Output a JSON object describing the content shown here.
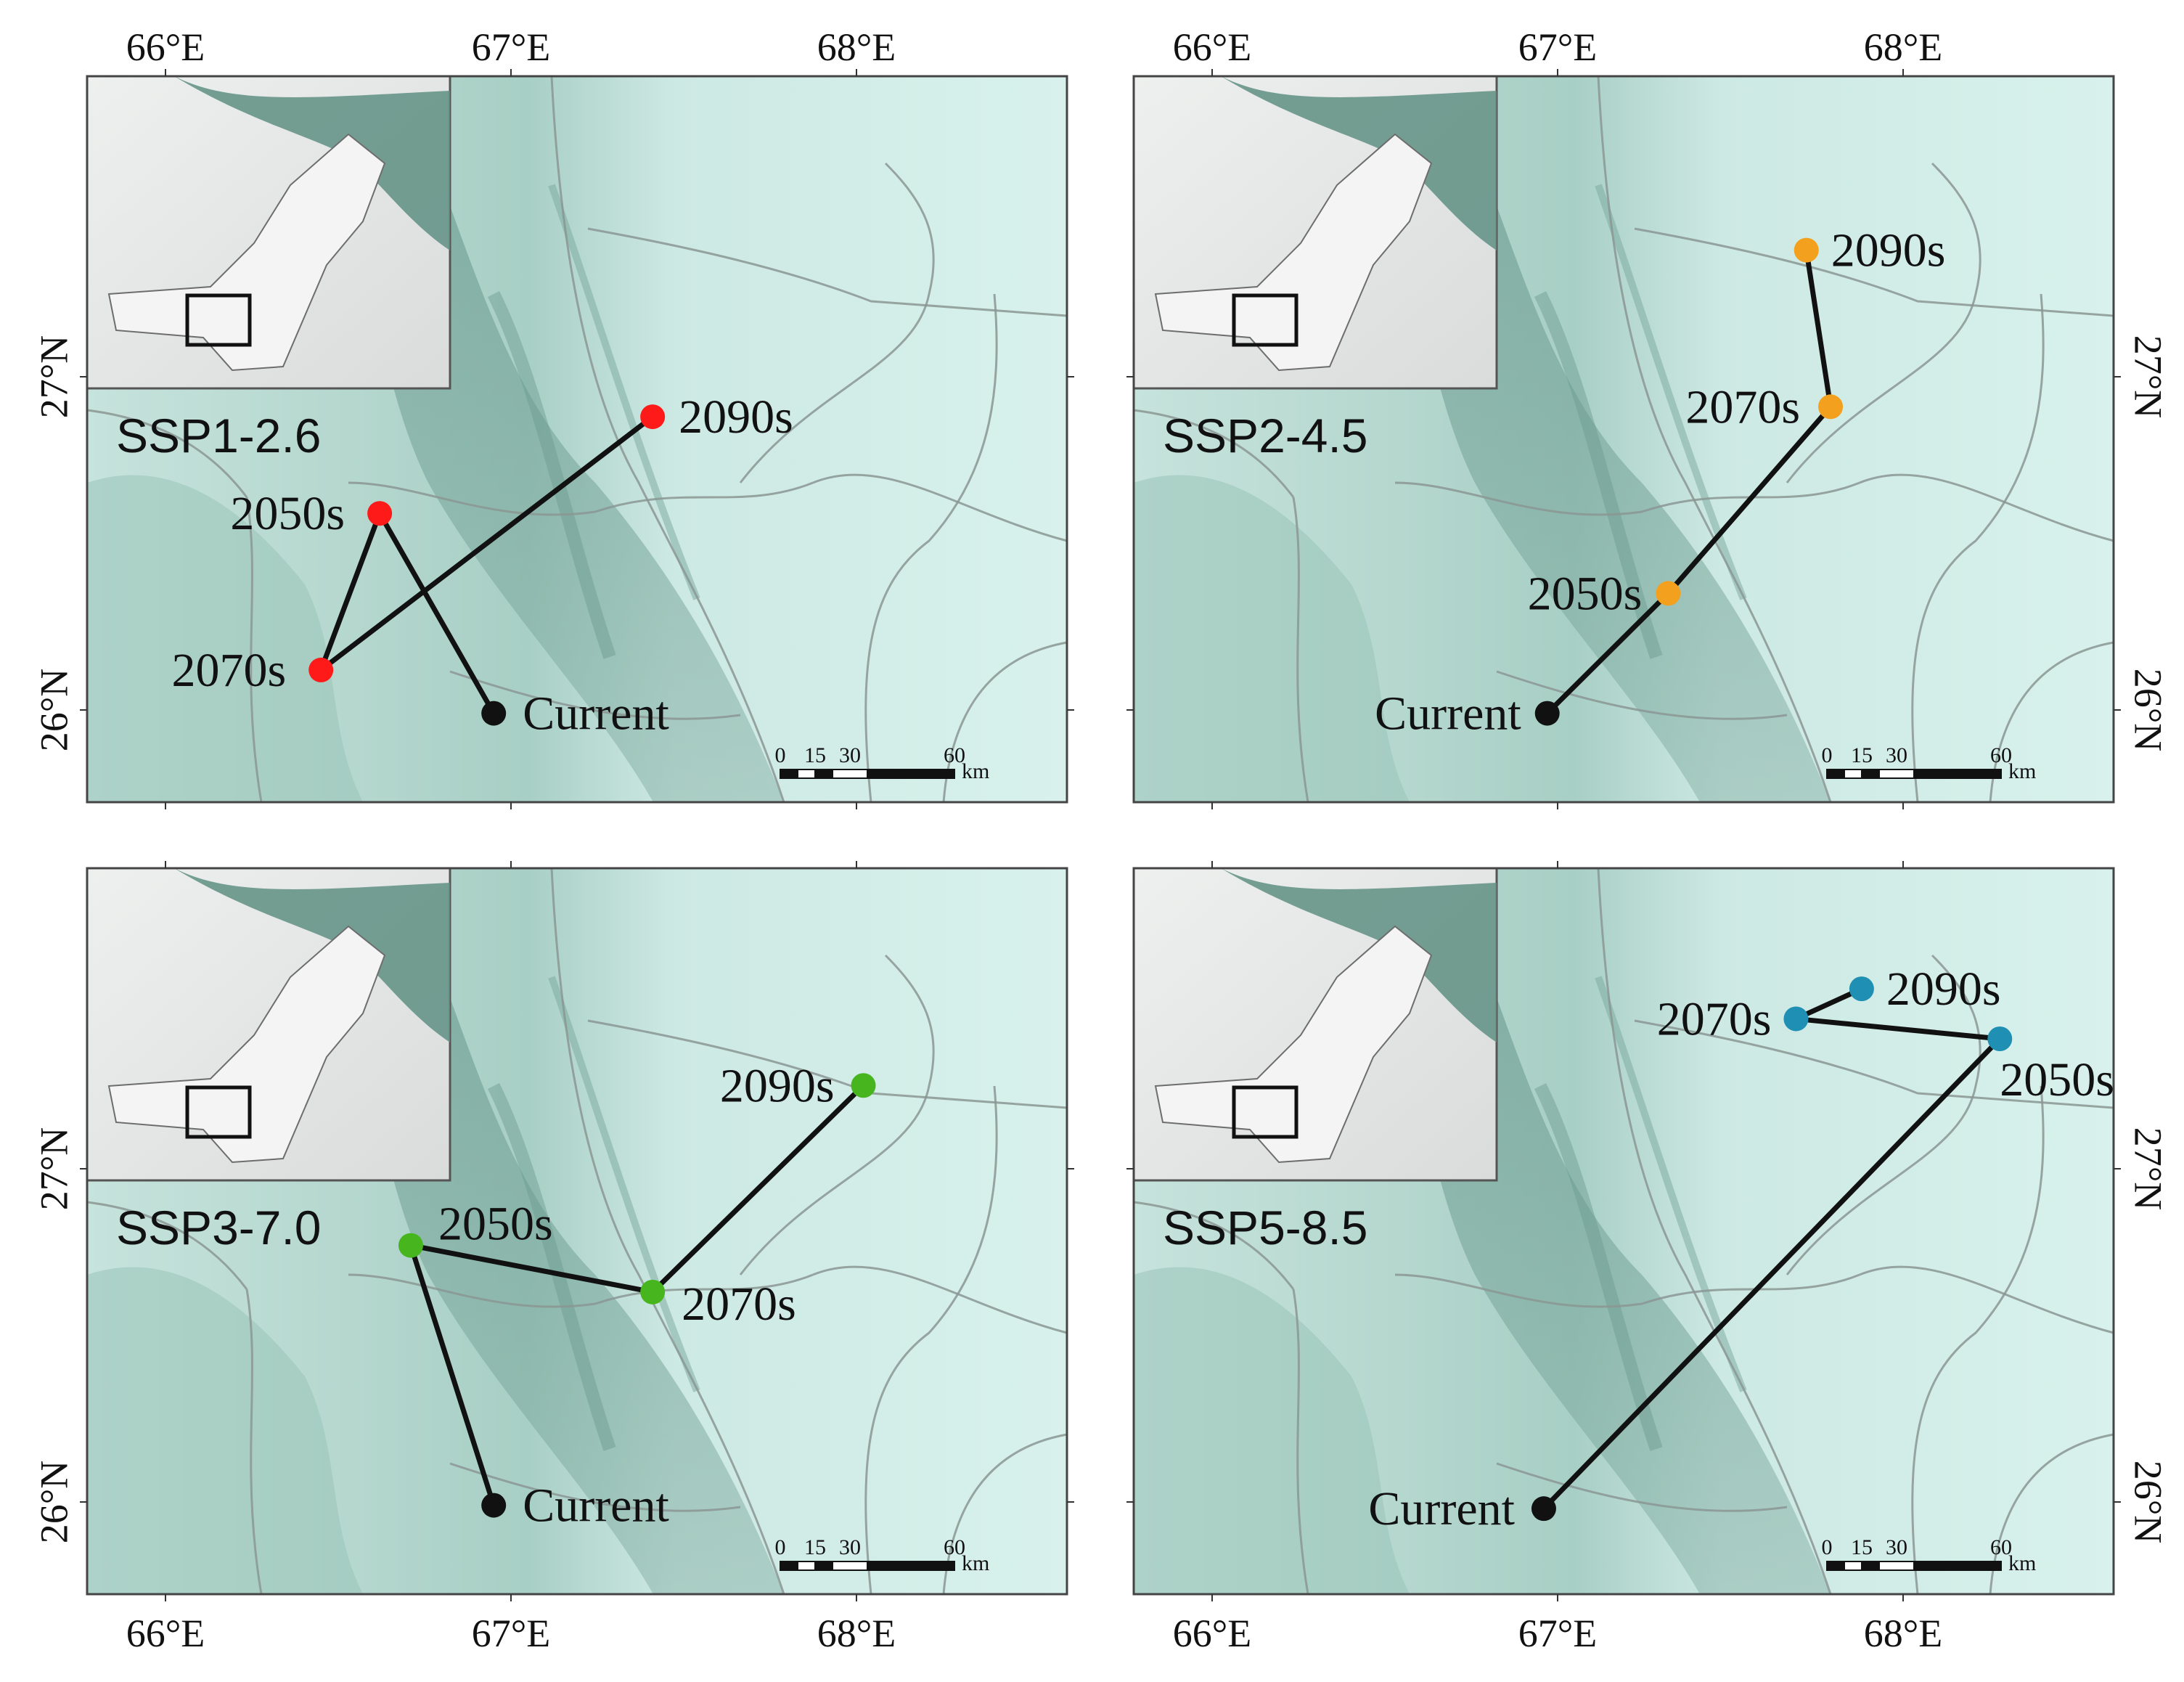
{
  "figure": {
    "axis": {
      "lon_ticks": [
        "66°E",
        "67°E",
        "68°E"
      ],
      "lat_ticks": [
        "27°N",
        "26°N"
      ]
    },
    "scalebar": {
      "labels": [
        "0",
        "15",
        "30",
        "60"
      ],
      "unit": "km"
    },
    "colors": {
      "ssp1": "#ff1a1a",
      "ssp2": "#f2a01e",
      "ssp3": "#47b51e",
      "ssp5": "#1f8fb3",
      "current": "#111111"
    },
    "panels": [
      {
        "scenario": "SSP1-2.6",
        "color": "#ff1a1a",
        "points": [
          {
            "label": "Current",
            "lon": 66.95,
            "lat": 25.99
          },
          {
            "label": "2050s",
            "lon": 66.62,
            "lat": 26.59
          },
          {
            "label": "2070s",
            "lon": 66.45,
            "lat": 26.12
          },
          {
            "label": "2090s",
            "lon": 67.41,
            "lat": 26.88
          }
        ]
      },
      {
        "scenario": "SSP2-4.5",
        "color": "#f2a01e",
        "points": [
          {
            "label": "Current",
            "lon": 66.97,
            "lat": 25.99
          },
          {
            "label": "2050s",
            "lon": 67.32,
            "lat": 26.35
          },
          {
            "label": "2070s",
            "lon": 67.79,
            "lat": 26.91
          },
          {
            "label": "2090s",
            "lon": 67.72,
            "lat": 27.38
          }
        ]
      },
      {
        "scenario": "SSP3-7.0",
        "color": "#47b51e",
        "points": [
          {
            "label": "Current",
            "lon": 66.95,
            "lat": 25.99
          },
          {
            "label": "2050s",
            "lon": 66.71,
            "lat": 26.77
          },
          {
            "label": "2070s",
            "lon": 67.41,
            "lat": 26.63
          },
          {
            "label": "2090s",
            "lon": 68.02,
            "lat": 27.25
          }
        ]
      },
      {
        "scenario": "SSP5-8.5",
        "color": "#1f8fb3",
        "points": [
          {
            "label": "Current",
            "lon": 66.96,
            "lat": 25.98
          },
          {
            "label": "2050s",
            "lon": 68.28,
            "lat": 27.39
          },
          {
            "label": "2070s",
            "lon": 67.69,
            "lat": 27.45
          },
          {
            "label": "2090s",
            "lon": 67.88,
            "lat": 27.54
          }
        ]
      }
    ]
  }
}
